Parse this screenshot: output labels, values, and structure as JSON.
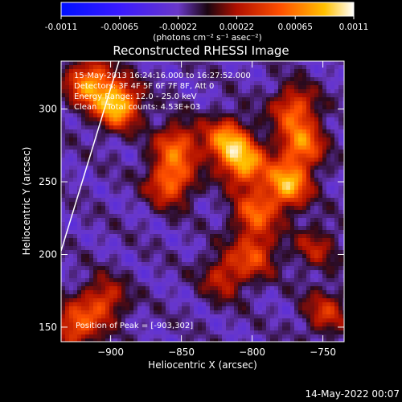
{
  "colorbar": {
    "ticks": [
      "-0.0011",
      "-0.00065",
      "-0.00022",
      "0.00022",
      "0.00065",
      "0.0011"
    ],
    "unit_label": "(photons cm⁻² s⁻¹ asec⁻²)"
  },
  "chart_data": {
    "type": "heatmap",
    "title": "Reconstructed RHESSI Image",
    "xlabel": "Heliocentric X (arcsec)",
    "ylabel": "Heliocentric Y (arcsec)",
    "xlim": [
      -935,
      -735
    ],
    "ylim": [
      140,
      333
    ],
    "x_ticks": [
      -900,
      -850,
      -800,
      -750
    ],
    "y_ticks": [
      150,
      200,
      250,
      300
    ],
    "value_range": [
      -0.0011,
      0.0011
    ],
    "annotations": {
      "time_range": "15-May-2013 16:24:16.000 to 16:27:52.000",
      "detectors": "Detectors: 3F 4F 5F 6F 7F 8F, Att 0",
      "energy_range": "Energy Range: 12.0 - 25.0 keV",
      "clean_counts": "Clean    Total counts: 4.53E+03",
      "peak": "Position of Peak = [-903,302]"
    },
    "sources": [
      {
        "x": -895,
        "y": 303,
        "value": 0.0011
      },
      {
        "x": -915,
        "y": 318,
        "value": 0.0009
      },
      {
        "x": -858,
        "y": 250,
        "value": 0.0008
      },
      {
        "x": -853,
        "y": 275,
        "value": 0.0007
      },
      {
        "x": -818,
        "y": 278,
        "value": 0.0009
      },
      {
        "x": -805,
        "y": 262,
        "value": 0.0009
      },
      {
        "x": -775,
        "y": 248,
        "value": 0.001
      },
      {
        "x": -765,
        "y": 275,
        "value": 0.0008
      },
      {
        "x": -770,
        "y": 300,
        "value": 0.0007
      },
      {
        "x": -798,
        "y": 228,
        "value": 0.0007
      },
      {
        "x": -798,
        "y": 200,
        "value": 0.0006
      },
      {
        "x": -820,
        "y": 185,
        "value": 0.0005
      },
      {
        "x": -905,
        "y": 168,
        "value": 0.0006
      },
      {
        "x": -925,
        "y": 150,
        "value": 0.0007
      },
      {
        "x": -748,
        "y": 160,
        "value": 0.0005
      },
      {
        "x": -755,
        "y": 205,
        "value": 0.0004
      }
    ]
  },
  "footer": {
    "timestamp": "14-May-2022 00:07"
  }
}
